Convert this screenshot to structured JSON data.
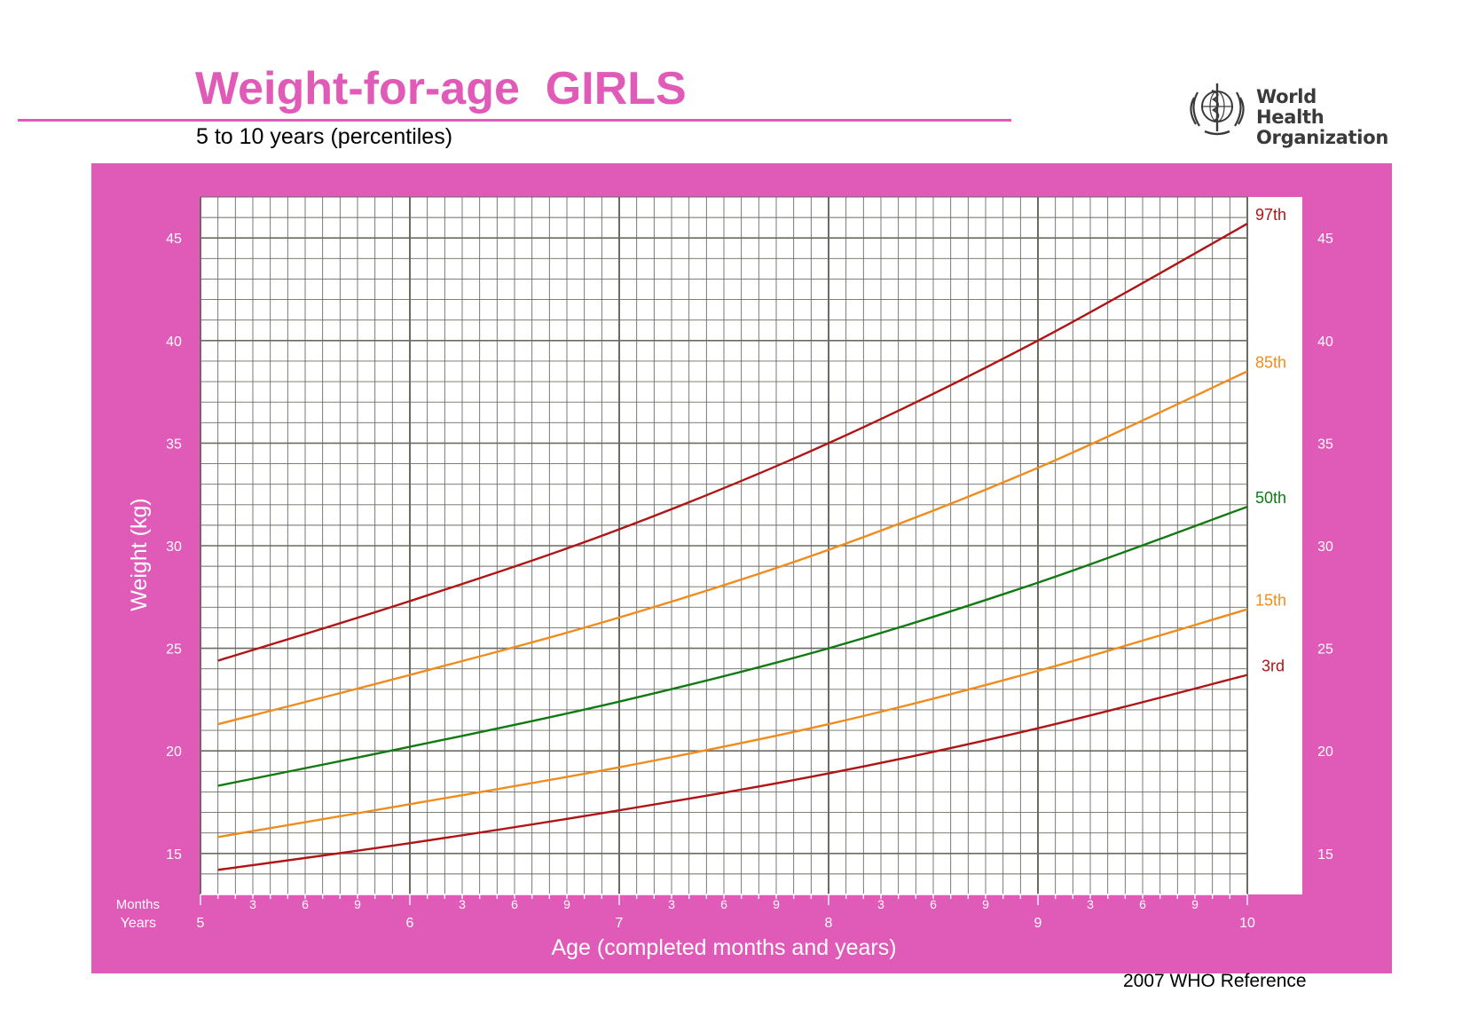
{
  "header": {
    "title": "Weight-for-age  GIRLS",
    "subtitle": "5 to 10 years (percentiles)"
  },
  "logo": {
    "line1": "World Health",
    "line2": "Organization",
    "icon": "who-emblem-icon"
  },
  "footer": {
    "reference": "2007 WHO Reference"
  },
  "colors": {
    "pink": "#e05ab8",
    "red": "#b01515",
    "orange": "#f08c1e",
    "green": "#127a12",
    "grid": "#6b6b63"
  },
  "chart_data": {
    "type": "line",
    "xlabel": "Age (completed months and years)",
    "ylabel": "Weight (kg)",
    "xlim": [
      5,
      10
    ],
    "ylim": [
      13,
      47
    ],
    "x_row_labels": {
      "months": "Months",
      "years": "Years"
    },
    "x_year_ticks": [
      "5",
      "6",
      "7",
      "8",
      "9",
      "10"
    ],
    "x_month_ticks": [
      "3",
      "6",
      "9"
    ],
    "y_ticks": [
      15,
      20,
      25,
      30,
      35,
      40,
      45
    ],
    "grid": true,
    "legend_position": "right",
    "x": [
      5.0833,
      6,
      7,
      8,
      9,
      10
    ],
    "series": [
      {
        "name": "97th",
        "color": "#b01515",
        "values": [
          24.4,
          27.3,
          30.8,
          35.0,
          40.0,
          45.7
        ]
      },
      {
        "name": "85th",
        "color": "#f08c1e",
        "values": [
          21.3,
          23.7,
          26.5,
          29.8,
          33.8,
          38.5
        ]
      },
      {
        "name": "50th",
        "color": "#127a12",
        "values": [
          18.3,
          20.2,
          22.4,
          25.0,
          28.2,
          31.9
        ]
      },
      {
        "name": "15th",
        "color": "#f08c1e",
        "values": [
          15.8,
          17.4,
          19.2,
          21.3,
          23.9,
          26.9
        ]
      },
      {
        "name": "3rd",
        "color": "#b01515",
        "values": [
          14.2,
          15.5,
          17.1,
          18.9,
          21.1,
          23.7
        ]
      }
    ]
  }
}
